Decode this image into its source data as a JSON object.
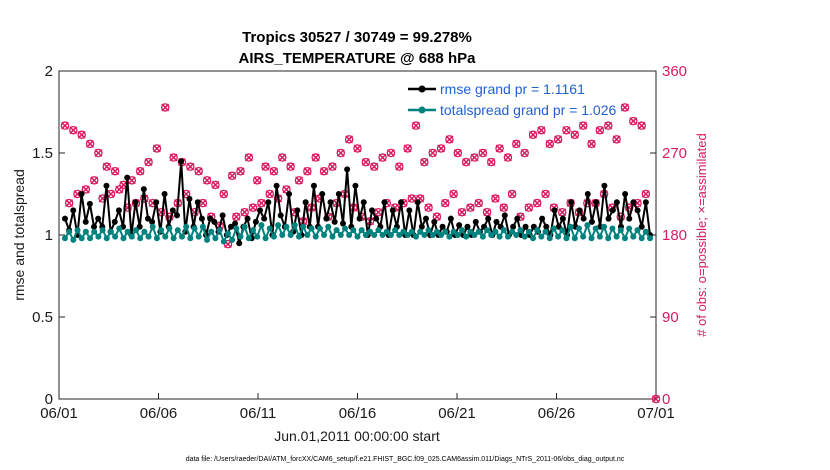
{
  "chart_data": {
    "type": "line",
    "title_line1": "Tropics 30527 / 30749 = 99.278%",
    "title_line2": "AIRS_TEMPERATURE @ 688 hPa",
    "xlabel": "Jun.01,2011 00:00:00 start",
    "ylabel_left": "rmse and totalspread",
    "ylabel_right": "# of obs: o=possible; ×=assimilated",
    "x_ticks": [
      "06/01",
      "06/06",
      "06/11",
      "06/16",
      "06/21",
      "06/26",
      "07/01"
    ],
    "xlim_days": [
      0,
      30
    ],
    "ylim_left": [
      0,
      2
    ],
    "y_ticks_left": [
      "0",
      "0.5",
      "1",
      "1.5",
      "2"
    ],
    "ylim_right": [
      0,
      360
    ],
    "y_ticks_right": [
      "0",
      "90",
      "180",
      "270",
      "360"
    ],
    "legend": [
      "rmse grand pr = 1.1161",
      "totalspread grand pr = 1.026"
    ],
    "footer": "data file: /Users/raeder/DAI/ATM_forcXX/CAM6_setup/f.e21.FHIST_BGC.f09_025.CAM6assim.011/Diags_NTrS_2011-06/obs_diag_output.nc",
    "colors": {
      "rmse": "#000000",
      "spread": "#00827f",
      "obs": "#d81b60",
      "legend_text": "#1f5fd8"
    },
    "series": [
      {
        "name": "rmse",
        "values": [
          1.1,
          1.03,
          1.15,
          1.0,
          1.25,
          1.08,
          1.19,
          1.05,
          1.1,
          1.05,
          1.3,
          1.02,
          1.08,
          1.15,
          1.05,
          1.35,
          1.0,
          1.2,
          1.05,
          1.28,
          1.1,
          1.08,
          1.2,
          1.02,
          1.25,
          1.05,
          1.15,
          1.12,
          1.45,
          1.02,
          1.22,
          1.05,
          1.2,
          1.1,
          1.0,
          1.1,
          1.08,
          1.02,
          1.12,
          1.0,
          1.05,
          1.07,
          0.95,
          1.05,
          1.1,
          0.98,
          1.08,
          1.15,
          1.1,
          1.2,
          1.0,
          1.3,
          1.12,
          1.05,
          1.25,
          1.02,
          1.15,
          1.0,
          1.2,
          1.05,
          1.3,
          1.05,
          1.25,
          1.1,
          1.2,
          1.08,
          1.25,
          1.07,
          1.4,
          1.05,
          1.3,
          1.1,
          1.2,
          1.0,
          1.15,
          1.1,
          1.05,
          1.2,
          1.0,
          1.15,
          1.05,
          1.2,
          1.0,
          1.15,
          1.0,
          1.2,
          1.05,
          1.1,
          1.0,
          1.08,
          1.0,
          1.05,
          1.02,
          1.1,
          1.0,
          1.06,
          1.0,
          1.05,
          1.0,
          1.08,
          1.02,
          1.05,
          1.1,
          1.0,
          1.08,
          1.05,
          1.12,
          1.0,
          1.05,
          1.1,
          1.0,
          1.05,
          1.0,
          1.05,
          1.02,
          1.1,
          1.05,
          1.0,
          1.15,
          1.05,
          1.1,
          1.0,
          1.2,
          1.05,
          1.15,
          1.1,
          1.25,
          1.08,
          1.2,
          1.05,
          1.3,
          1.1,
          1.15,
          1.2,
          1.05,
          1.25,
          1.1,
          1.2,
          1.15,
          1.05,
          1.2,
          1.0
        ]
      },
      {
        "name": "totalspread",
        "values": [
          0.98,
          1.02,
          0.97,
          1.03,
          0.98,
          1.02,
          0.98,
          1.02,
          0.99,
          1.03,
          0.98,
          1.02,
          0.99,
          1.04,
          0.98,
          1.02,
          0.99,
          1.03,
          0.98,
          1.02,
          0.99,
          1.05,
          0.98,
          1.03,
          0.99,
          1.04,
          0.98,
          1.03,
          0.99,
          1.05,
          0.98,
          1.04,
          0.99,
          1.05,
          0.97,
          1.02,
          0.98,
          1.03,
          0.96,
          1.01,
          0.97,
          1.04,
          0.99,
          1.05,
          0.98,
          1.03,
          0.99,
          1.06,
          0.98,
          1.04,
          0.99,
          1.06,
          1.0,
          1.05,
          1.0,
          1.06,
          0.99,
          1.05,
          1.0,
          1.04,
          0.99,
          1.04,
          1.0,
          1.05,
          0.99,
          1.03,
          1.0,
          1.04,
          1.0,
          1.03,
          0.99,
          1.03,
          1.0,
          1.02,
          1.0,
          1.03,
          1.0,
          1.02,
          1.0,
          1.03,
          1.0,
          1.02,
          1.0,
          1.02,
          0.99,
          1.02,
          1.0,
          1.03,
          1.0,
          1.02,
          1.0,
          1.02,
          0.99,
          1.02,
          1.0,
          1.03,
          0.99,
          1.02,
          1.0,
          1.02,
          0.99,
          1.03,
          1.0,
          1.02,
          0.99,
          1.03,
          0.99,
          1.02,
          1.0,
          1.03,
          0.99,
          1.02,
          0.98,
          1.03,
          0.99,
          1.02,
          0.98,
          1.04,
          0.99,
          1.03,
          0.98,
          1.05,
          0.98,
          1.04,
          0.99,
          1.06,
          0.98,
          1.04,
          0.99,
          1.05,
          0.98,
          1.04,
          0.99,
          1.03,
          0.98,
          1.04,
          0.99,
          1.03,
          0.98,
          1.02,
          0.98
        ]
      },
      {
        "name": "obs_count",
        "values": [
          300,
          215,
          295,
          225,
          290,
          230,
          280,
          240,
          270,
          220,
          255,
          225,
          250,
          230,
          235,
          210,
          240,
          215,
          250,
          220,
          260,
          215,
          275,
          205,
          320,
          200,
          265,
          215,
          260,
          225,
          255,
          205,
          250,
          215,
          240,
          200,
          235,
          190,
          225,
          170,
          245,
          200,
          250,
          205,
          265,
          210,
          240,
          215,
          255,
          225,
          250,
          220,
          265,
          230,
          255,
          205,
          240,
          195,
          250,
          210,
          265,
          220,
          250,
          200,
          255,
          215,
          270,
          225,
          285,
          210,
          275,
          200,
          260,
          195,
          255,
          205,
          265,
          215,
          270,
          210,
          255,
          215,
          275,
          220,
          300,
          220,
          260,
          210,
          270,
          200,
          275,
          215,
          285,
          225,
          270,
          205,
          260,
          210,
          265,
          215,
          270,
          205,
          260,
          220,
          275,
          210,
          265,
          225,
          280,
          200,
          270,
          210,
          290,
          215,
          295,
          225,
          280,
          210,
          285,
          205,
          295,
          215,
          290,
          205,
          300,
          215,
          280,
          215,
          295,
          225,
          300,
          210,
          285,
          200,
          320,
          210,
          305,
          215,
          300,
          225,
          0
        ]
      }
    ]
  }
}
